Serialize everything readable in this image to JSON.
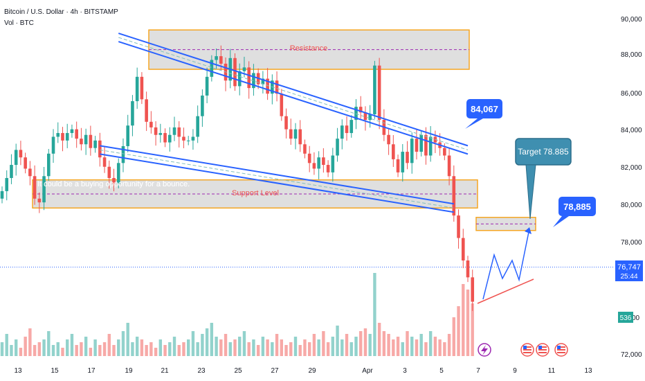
{
  "header": {
    "symbol_line": "Bitcoin / U.S. Dollar · 4h · BITSTAMP",
    "volume_line": "Vol · BTC"
  },
  "annotations": {
    "resistance": "Resistance",
    "support": "Support Level",
    "note": "It could be a buying opportunity for a bounce.",
    "callout_84067": "84,067",
    "callout_target": "Target 78.885",
    "callout_78885": "78,885"
  },
  "price_axis": {
    "ticks": [
      "90,000",
      "88,000",
      "86,000",
      "84,000",
      "82,000",
      "80,000",
      "78,000",
      "72,000"
    ],
    "last_price": "76,747",
    "countdown": "25:44",
    "volume_badge": "536",
    "partial_tick": "00"
  },
  "time_axis": {
    "ticks": [
      "13",
      "15",
      "17",
      "19",
      "21",
      "23",
      "25",
      "27",
      "29",
      "Apr",
      "3",
      "5",
      "7",
      "9",
      "11",
      "13"
    ]
  },
  "colors": {
    "up": "#26a69a",
    "down": "#ef5350",
    "accent": "#2962ff",
    "zone_border": "#f5a623",
    "zone_fill": "#d9d9d9",
    "target_box": "#3f8fb0"
  },
  "chart_data": {
    "type": "candlestick",
    "ylim": [
      72000,
      90000
    ],
    "close_path": [
      80800,
      81500,
      82200,
      83000,
      82600,
      82000,
      81600,
      80400,
      80200,
      81600,
      82800,
      83700,
      83900,
      83500,
      83900,
      84100,
      83600,
      83300,
      83800,
      83100,
      83500,
      82600,
      82100,
      81500,
      81200,
      82300,
      83200,
      84300,
      85600,
      86900,
      85700,
      84500,
      84200,
      83800,
      83900,
      83400,
      83800,
      84200,
      83700,
      83500,
      83500,
      83700,
      84800,
      85900,
      86900,
      87800,
      88000,
      87600,
      86700,
      87900,
      86400,
      87200,
      87400,
      86300,
      87100,
      86500,
      86800,
      86000,
      86700,
      86000,
      84800,
      84100,
      83600,
      84100,
      83300,
      82800,
      82300,
      82000,
      82600,
      82200,
      81800,
      82700,
      83600,
      84300,
      83900,
      84600,
      85300,
      85000,
      84600,
      84900,
      87500,
      84600,
      83800,
      83300,
      82500,
      81800,
      82900,
      82300,
      83600,
      82900,
      83800,
      82700,
      83700,
      83400,
      83100,
      82700,
      81600,
      79500,
      78300,
      77100,
      76200,
      74900
    ],
    "volume": [
      5,
      8,
      4,
      6,
      3,
      7,
      10,
      4,
      5,
      6,
      9,
      4,
      5,
      3,
      6,
      8,
      4,
      5,
      7,
      3,
      6,
      4,
      5,
      8,
      4,
      6,
      9,
      12,
      5,
      7,
      6,
      4,
      5,
      3,
      6,
      4,
      5,
      7,
      4,
      5,
      6,
      9,
      5,
      8,
      10,
      12,
      7,
      6,
      8,
      5,
      6,
      7,
      9,
      5,
      6,
      4,
      7,
      6,
      5,
      8,
      6,
      4,
      5,
      7,
      4,
      6,
      5,
      8,
      6,
      9,
      5,
      7,
      11,
      6,
      8,
      5,
      7,
      9,
      10,
      8,
      30,
      12,
      9,
      8,
      6,
      7,
      5,
      9,
      7,
      6,
      8,
      5,
      9,
      7,
      6,
      5,
      8,
      14,
      18,
      26,
      24,
      19
    ],
    "resistance_zone": [
      87300,
      89400
    ],
    "support_zone": [
      79900,
      81400
    ],
    "target_zone": [
      78700,
      79400
    ],
    "last_price": 76747,
    "upper_channel": [
      [
        25,
        89000
      ],
      [
        100,
        83000
      ]
    ],
    "lower_channel": [
      [
        21,
        83000
      ],
      [
        97,
        79900
      ]
    ],
    "callouts": [
      84067,
      78885
    ]
  }
}
